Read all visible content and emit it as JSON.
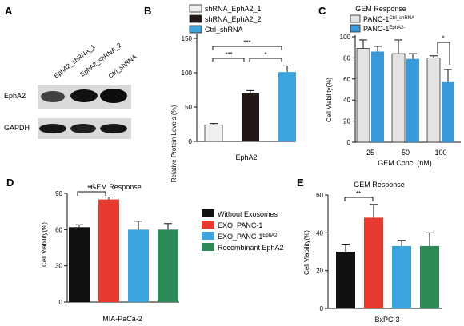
{
  "panel_letters": {
    "A": "A",
    "B": "B",
    "C": "C",
    "D": "D",
    "E": "E"
  },
  "colors": {
    "shrna_1": "#f0f0f0",
    "shrna_2": "#231815",
    "ctrl": "#3aa6dd",
    "panc_ctrl": "#e3e3e3",
    "panc_epha2": "#3a9ad9",
    "without": "#111111",
    "exo_panc1": "#e8392e",
    "exo_epha2": "#3aa6dd",
    "recombinant": "#2e8b57",
    "blot_bg": "#d9d9d9"
  },
  "panel_a": {
    "lanes": [
      "EphA2_shRNA_1",
      "EphA2_shRNA_2",
      "Ctrl_shRNA"
    ],
    "rows": [
      "EphA2",
      "GAPDH"
    ]
  },
  "chart_data": [
    {
      "panel": "B",
      "type": "bar",
      "title": "",
      "ylabel": "Relative Protein Levels (%)",
      "xlabel": "EphA2",
      "ylim": [
        0,
        150
      ],
      "yticks": [
        "0",
        "50",
        "100",
        "150"
      ],
      "legend": [
        "shRNA_EphA2_1",
        "shRNA_EphA2_2",
        "Ctrl_shRNA"
      ],
      "series": [
        {
          "name": "shRNA_EphA2_1",
          "value": 24,
          "error": 2
        },
        {
          "name": "shRNA_EphA2_2",
          "value": 70,
          "error": 4
        },
        {
          "name": "Ctrl_shRNA",
          "value": 101,
          "error": 9
        }
      ],
      "significance": [
        "***",
        "***",
        "*"
      ]
    },
    {
      "panel": "C",
      "type": "bar",
      "title": "GEM Response",
      "ylabel": "Cell Viability(%)",
      "xlabel": "GEM Conc. (nM)",
      "ylim": [
        0,
        100
      ],
      "yticks": [
        "0",
        "20",
        "40",
        "60",
        "80",
        "100"
      ],
      "categories": [
        "25",
        "50",
        "100"
      ],
      "legend": [
        {
          "base": "PANC-1",
          "sup": "Ctrl_shRNA"
        },
        {
          "base": "PANC-1",
          "sup": "EphA2-"
        }
      ],
      "series": [
        {
          "name": "PANC-1 Ctrl_shRNA",
          "values": [
            89,
            84,
            80
          ],
          "errors": [
            8,
            13,
            2
          ]
        },
        {
          "name": "PANC-1 EphA2-",
          "values": [
            86,
            79,
            57
          ],
          "errors": [
            5,
            5,
            12
          ]
        }
      ],
      "significance": [
        "*"
      ]
    },
    {
      "panel": "D",
      "type": "bar",
      "title": "GEM Response",
      "ylabel": "Cell Viability(%)",
      "xlabel": "MIA-PaCa-2",
      "ylim": [
        0,
        90
      ],
      "yticks": [
        "0",
        "30",
        "60",
        "90"
      ],
      "series": [
        {
          "name": "Without Exosomes",
          "value": 62,
          "error": 2
        },
        {
          "name": "EXO_PANC-1",
          "value": 85,
          "error": 2
        },
        {
          "name": "EXO_PANC-1 EphA2-",
          "value": 60,
          "error": 7
        },
        {
          "name": "Recombinant EphA2",
          "value": 60,
          "error": 5
        }
      ],
      "significance": [
        "***"
      ]
    },
    {
      "panel": "E",
      "type": "bar",
      "title": "GEM Response",
      "ylabel": "Cell Viability(%)",
      "xlabel": "BxPC-3",
      "ylim": [
        0,
        60
      ],
      "yticks": [
        "0",
        "20",
        "40",
        "60"
      ],
      "series": [
        {
          "name": "Without Exosomes",
          "value": 30,
          "error": 4
        },
        {
          "name": "EXO_PANC-1",
          "value": 48,
          "error": 7
        },
        {
          "name": "EXO_PANC-1 EphA2-",
          "value": 33,
          "error": 3
        },
        {
          "name": "Recombinant EphA2",
          "value": 33,
          "error": 7
        }
      ],
      "significance": [
        "**"
      ]
    }
  ],
  "shared_legend": [
    {
      "label": "Without Exosomes",
      "sup": ""
    },
    {
      "label": "EXO_PANC-1",
      "sup": ""
    },
    {
      "label": "EXO_PANC-1",
      "sup": "EphA2-"
    },
    {
      "label": "Recombinant EphA2",
      "sup": ""
    }
  ]
}
